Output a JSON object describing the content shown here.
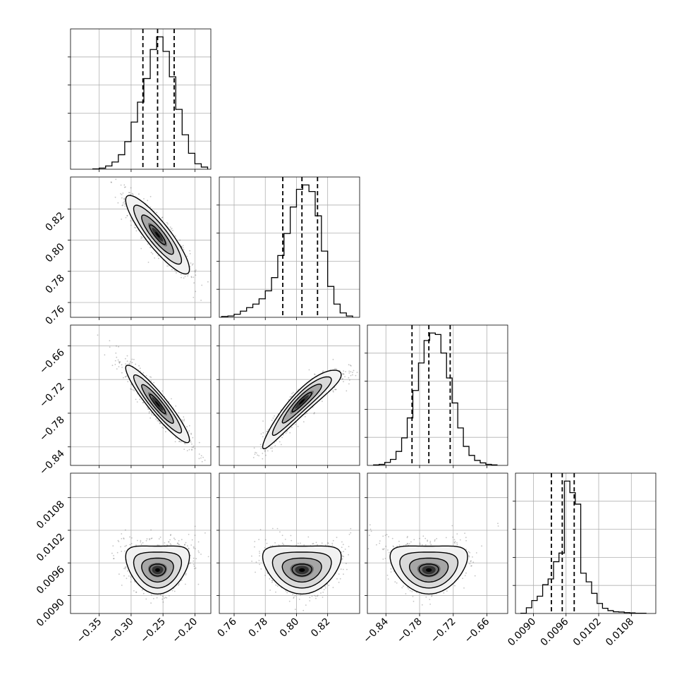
{
  "chart_data": {
    "type": "corner",
    "grid": true,
    "colors": {
      "line": "#000000",
      "grid": "#b0b0b0",
      "points": "#555555",
      "fill_levels": [
        "#f2f2f2",
        "#d9d9d9",
        "#a6a6a6",
        "#6e6e6e",
        "#333333",
        "#000000"
      ]
    },
    "parameters": [
      {
        "id": "p1",
        "range": [
          -0.395,
          -0.175
        ],
        "ticks": [
          -0.35,
          -0.3,
          -0.25,
          -0.2
        ],
        "tick_labels": [
          "−0.35",
          "−0.30",
          "−0.25",
          "−0.20"
        ],
        "quantiles": [
          -0.2815,
          -0.2585,
          -0.2325
        ],
        "hist": {
          "edges": [
            -0.36,
            -0.35,
            -0.34,
            -0.33,
            -0.32,
            -0.31,
            -0.3,
            -0.29,
            -0.28,
            -0.27,
            -0.26,
            -0.25,
            -0.24,
            -0.23,
            -0.22,
            -0.21,
            -0.2,
            -0.19,
            -0.18
          ],
          "counts": [
            1,
            3,
            9,
            20,
            40,
            76,
            130,
            185,
            250,
            330,
            365,
            325,
            255,
            165,
            95,
            44,
            15,
            6
          ]
        }
      },
      {
        "id": "p2",
        "range": [
          0.7505,
          0.8405
        ],
        "ticks": [
          0.76,
          0.78,
          0.8,
          0.82
        ],
        "tick_labels": [
          "0.76",
          "0.78",
          "0.80",
          "0.82"
        ],
        "quantiles": [
          0.7912,
          0.8035,
          0.8135
        ],
        "hist": {
          "edges": [
            0.752,
            0.756,
            0.76,
            0.764,
            0.768,
            0.772,
            0.776,
            0.78,
            0.784,
            0.788,
            0.792,
            0.796,
            0.8,
            0.804,
            0.808,
            0.812,
            0.816,
            0.82,
            0.824,
            0.828,
            0.832,
            0.836
          ],
          "counts": [
            2,
            3,
            7,
            14,
            22,
            30,
            42,
            60,
            90,
            140,
            190,
            250,
            290,
            300,
            285,
            230,
            150,
            70,
            30,
            10,
            3
          ]
        }
      },
      {
        "id": "p3",
        "range": [
          -0.873,
          -0.623
        ],
        "ticks": [
          -0.84,
          -0.78,
          -0.72,
          -0.66
        ],
        "tick_labels": [
          "−0.84",
          "−0.78",
          "−0.72",
          "−0.66"
        ],
        "quantiles": [
          -0.7935,
          -0.7635,
          -0.7255
        ],
        "hist": {
          "edges": [
            -0.862,
            -0.852,
            -0.842,
            -0.832,
            -0.822,
            -0.812,
            -0.802,
            -0.792,
            -0.782,
            -0.772,
            -0.762,
            -0.752,
            -0.742,
            -0.732,
            -0.722,
            -0.712,
            -0.702,
            -0.692,
            -0.682,
            -0.672,
            -0.662,
            -0.652,
            -0.642
          ],
          "counts": [
            1,
            2,
            6,
            12,
            28,
            55,
            95,
            150,
            205,
            250,
            265,
            262,
            225,
            175,
            125,
            75,
            38,
            20,
            10,
            5,
            2,
            1
          ]
        }
      },
      {
        "id": "p4",
        "range": [
          0.00867,
          0.01125
        ],
        "ticks": [
          0.009,
          0.0096,
          0.0102,
          0.0108
        ],
        "tick_labels": [
          "0.0090",
          "0.0096",
          "0.0102",
          "0.0108"
        ],
        "quantiles": [
          0.00933,
          0.00953,
          0.00975
        ],
        "hist": {
          "edges": [
            0.00877,
            0.00887,
            0.00897,
            0.00907,
            0.00917,
            0.00927,
            0.00937,
            0.00947,
            0.00957,
            0.00967,
            0.00977,
            0.00987,
            0.00997,
            0.01007,
            0.01017,
            0.01027,
            0.01037,
            0.01047,
            0.01057,
            0.01067,
            0.01077,
            0.01087,
            0.01097,
            0.01107
          ],
          "counts": [
            1,
            20,
            45,
            60,
            100,
            120,
            180,
            210,
            460,
            420,
            380,
            140,
            110,
            70,
            35,
            18,
            10,
            6,
            5,
            3,
            2,
            1,
            1
          ]
        }
      }
    ],
    "pairs": [
      {
        "x": "p1",
        "y": "p2",
        "center": [
          -0.2585,
          0.8035
        ],
        "sd": [
          0.025,
          0.0126
        ],
        "corr": -0.88,
        "shape": "gaussian"
      },
      {
        "x": "p1",
        "y": "p3",
        "center": [
          -0.2585,
          -0.7635
        ],
        "sd": [
          0.025,
          0.0345
        ],
        "corr": -0.93,
        "shape": "gaussian"
      },
      {
        "x": "p2",
        "y": "p3",
        "center": [
          0.8035,
          -0.7635
        ],
        "sd": [
          0.0126,
          0.0345
        ],
        "corr": 0.93,
        "shape": "curved"
      },
      {
        "x": "p1",
        "y": "p4",
        "center": [
          -0.2585,
          0.00953
        ],
        "sd": [
          0.025,
          0.00022
        ],
        "corr": 0.0,
        "shape": "banana"
      },
      {
        "x": "p2",
        "y": "p4",
        "center": [
          0.8035,
          0.00953
        ],
        "sd": [
          0.0126,
          0.00022
        ],
        "corr": 0.0,
        "shape": "banana"
      },
      {
        "x": "p3",
        "y": "p4",
        "center": [
          -0.7635,
          0.00953
        ],
        "sd": [
          0.0345,
          0.00022
        ],
        "corr": 0.0,
        "shape": "banana"
      }
    ],
    "contour_levels_sigma": [
      0.5,
      1.0,
      1.5,
      2.0
    ]
  }
}
